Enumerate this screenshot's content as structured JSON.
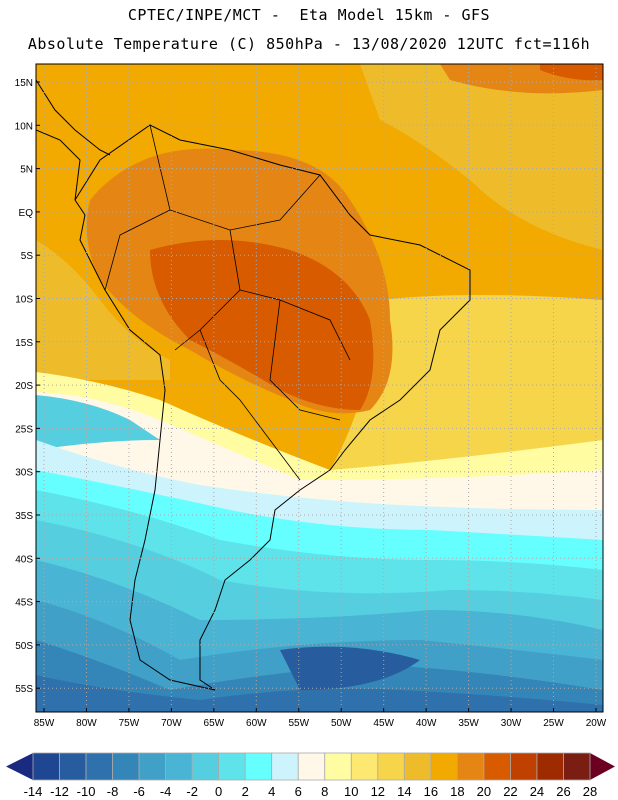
{
  "header": {
    "line1": "CPTEC/INPE/MCT -  Eta Model 15km - GFS",
    "line2": "Absolute Temperature (C) 850hPa - 13/08/2020 12UTC fct=116h"
  },
  "map": {
    "lat_labels": [
      "15N",
      "10N",
      "5N",
      "EQ",
      "5S",
      "10S",
      "15S",
      "20S",
      "25S",
      "30S",
      "35S",
      "40S",
      "45S",
      "50S",
      "55S"
    ],
    "lon_labels": [
      "85W",
      "80W",
      "75W",
      "70W",
      "65W",
      "60W",
      "55W",
      "50W",
      "45W",
      "40W",
      "35W",
      "30W",
      "25W",
      "20W"
    ]
  },
  "colorbar": {
    "labels": [
      "-14",
      "-12",
      "-10",
      "-8",
      "-6",
      "-4",
      "-2",
      "0",
      "2",
      "4",
      "6",
      "8",
      "10",
      "12",
      "14",
      "16",
      "18",
      "20",
      "22",
      "24",
      "26",
      "28"
    ],
    "under_color": "#1a2a7e",
    "over_color": "#6b0022",
    "colors": [
      "#1f4690",
      "#275c9e",
      "#2e71ad",
      "#3486b8",
      "#41a0c7",
      "#49b4d4",
      "#55cfe0",
      "#5ee3ea",
      "#66ffff",
      "#cdf4fd",
      "#fff8e8",
      "#fffca2",
      "#fde872",
      "#f6d54a",
      "#eebc2a",
      "#f2a900",
      "#e58614",
      "#d85b00",
      "#c04000",
      "#9e2a00",
      "#7a1d12"
    ]
  }
}
